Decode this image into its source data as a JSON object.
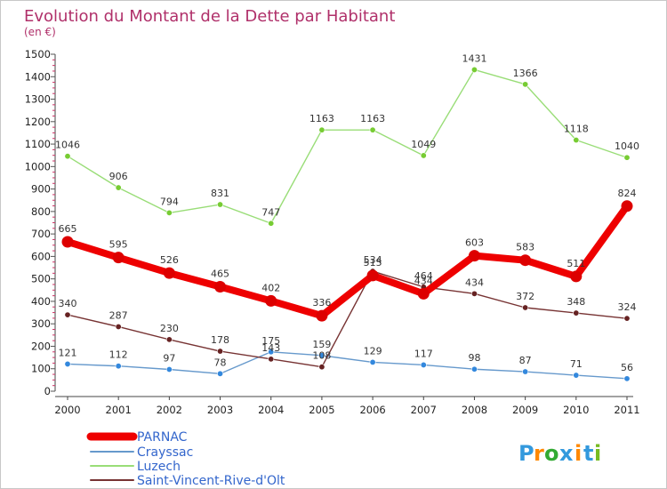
{
  "chart_data": {
    "type": "line",
    "title": "Evolution du Montant de la Dette par Habitant",
    "ylabel": "(en €)",
    "xlabel": "",
    "categories": [
      "2000",
      "2001",
      "2002",
      "2003",
      "2004",
      "2005",
      "2006",
      "2007",
      "2008",
      "2009",
      "2010",
      "2011"
    ],
    "ylim": [
      0,
      1500
    ],
    "yticks": [
      "0",
      "100",
      "200",
      "300",
      "400",
      "500",
      "600",
      "700",
      "800",
      "900",
      "1000",
      "1100",
      "1200",
      "1300",
      "1400",
      "1500"
    ],
    "grid": false,
    "legend_position": "bottom-left",
    "series": [
      {
        "name": "PARNAC",
        "color": "#ee0000",
        "emphasis": true,
        "values": [
          665,
          595,
          526,
          465,
          402,
          336,
          515,
          434,
          603,
          583,
          511,
          824
        ],
        "labels": [
          "665",
          "595",
          "526",
          "465",
          "402",
          "336",
          "515",
          "434",
          "603",
          "583",
          "511",
          "824"
        ]
      },
      {
        "name": "Crayssac",
        "color": "#6699cc",
        "marker": "#3388dd",
        "values": [
          121,
          112,
          97,
          78,
          175,
          159,
          129,
          117,
          98,
          87,
          71,
          56
        ],
        "labels": [
          "121",
          "112",
          "97",
          "78",
          "175",
          "159",
          "129",
          "117",
          "98",
          "87",
          "71",
          "56"
        ]
      },
      {
        "name": "Luzech",
        "color": "#99dd77",
        "marker": "#77cc33",
        "values": [
          1046,
          906,
          794,
          831,
          747,
          1163,
          1163,
          1049,
          1431,
          1366,
          1118,
          1040
        ],
        "labels": [
          "1046",
          "906",
          "794",
          "831",
          "747",
          "1163",
          "1163",
          "1049",
          "1431",
          "1366",
          "1118",
          "1040"
        ]
      },
      {
        "name": "Saint-Vincent-Rive-d'Olt",
        "color": "#773333",
        "marker": "#662222",
        "values": [
          340,
          287,
          230,
          178,
          143,
          108,
          534,
          464,
          434,
          372,
          348,
          324
        ],
        "labels": [
          "340",
          "287",
          "230",
          "178",
          "143",
          "108",
          "534",
          "464",
          "434",
          "372",
          "348",
          "324"
        ]
      }
    ]
  },
  "branding": {
    "logo_text": "Proxiti"
  }
}
